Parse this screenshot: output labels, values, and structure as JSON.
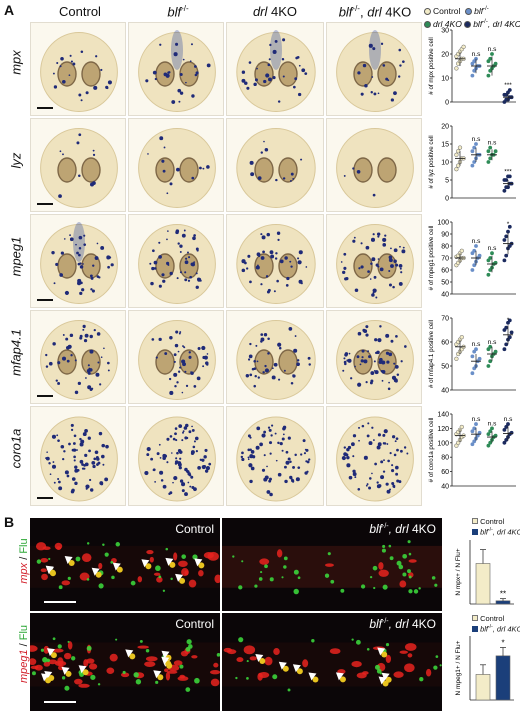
{
  "panel_a": {
    "letter": "A",
    "columns": [
      {
        "text": "Control",
        "italic": false
      },
      {
        "text": "blf",
        "sup": "-/-",
        "italic": true
      },
      {
        "text": "drl",
        "suffix": " 4KO",
        "italic": true
      },
      {
        "text": "blf",
        "sup": "-/-",
        "mid": ", ",
        "text2": "drl",
        "suffix": " 4KO",
        "italic": true
      }
    ],
    "rows": [
      "mpx",
      "lyz",
      "mpeg1",
      "mfap4.1",
      "coro1a"
    ],
    "legend": [
      {
        "label": "Control",
        "color": "#f3ecc8"
      },
      {
        "label": "blf",
        "sup": "-/-",
        "color": "#6a8fc8"
      },
      {
        "label": "drl 4KO",
        "color": "#2e8b57"
      },
      {
        "label": "blf",
        "sup": "-/-",
        "label2": ", drl 4KO",
        "color": "#1b2a5e"
      }
    ]
  },
  "chart_data": [
    {
      "type": "scatter",
      "gene": "mpx",
      "ylabel": "# of mpx positive cell",
      "ylim": [
        0,
        30
      ],
      "yticks": [
        0,
        10,
        20,
        30
      ],
      "groups": [
        "Control",
        "blf-/-",
        "drl 4KO",
        "blf-/-, drl 4KO"
      ],
      "means": [
        18,
        15,
        15,
        2
      ],
      "sd": [
        3,
        3,
        4,
        1.5
      ],
      "points": [
        [
          14,
          16,
          17,
          18,
          18,
          19,
          20,
          21,
          22,
          23
        ],
        [
          11,
          13,
          14,
          15,
          15,
          16,
          17,
          18
        ],
        [
          11,
          13,
          14,
          15,
          16,
          17,
          18,
          20
        ],
        [
          0,
          1,
          1,
          2,
          2,
          3,
          3,
          4,
          5
        ]
      ],
      "annotations": [
        "",
        "n.s",
        "n.s",
        "***"
      ]
    },
    {
      "type": "scatter",
      "gene": "lyz",
      "ylabel": "# of lyz positive cell",
      "ylim": [
        0,
        20
      ],
      "yticks": [
        0,
        5,
        10,
        15,
        20
      ],
      "groups": [
        "Control",
        "blf-/-",
        "drl 4KO",
        "blf-/-, drl 4KO"
      ],
      "means": [
        11,
        12,
        12,
        4
      ],
      "sd": [
        2,
        2,
        1.5,
        1
      ],
      "points": [
        [
          8,
          9,
          10,
          11,
          11,
          12,
          13,
          14
        ],
        [
          9,
          10,
          11,
          12,
          12,
          13,
          14,
          15
        ],
        [
          10,
          11,
          12,
          12,
          13,
          13,
          14
        ],
        [
          2,
          3,
          3,
          4,
          4,
          5,
          5,
          6,
          6
        ]
      ],
      "annotations": [
        "",
        "n.s",
        "n.s",
        "***"
      ]
    },
    {
      "type": "scatter",
      "gene": "mpeg1",
      "ylabel": "# of mpeg1 positive cell",
      "ylim": [
        40,
        100
      ],
      "yticks": [
        40,
        50,
        60,
        70,
        80,
        90,
        100
      ],
      "groups": [
        "Control",
        "blf-/-",
        "drl 4KO",
        "blf-/-, drl 4KO"
      ],
      "means": [
        70,
        70,
        65,
        82
      ],
      "sd": [
        4,
        6,
        7,
        9
      ],
      "points": [
        [
          64,
          66,
          68,
          70,
          70,
          71,
          72,
          74,
          76
        ],
        [
          60,
          64,
          67,
          70,
          72,
          74,
          76,
          80
        ],
        [
          56,
          60,
          62,
          65,
          66,
          68,
          70,
          74
        ],
        [
          68,
          72,
          78,
          80,
          82,
          85,
          88,
          92,
          96
        ]
      ],
      "annotations": [
        "",
        "n.s",
        "n.s",
        "*"
      ]
    },
    {
      "type": "scatter",
      "gene": "mfap4.1",
      "ylabel": "# of mfap4.1 positive cell",
      "ylim": [
        40,
        70
      ],
      "yticks": [
        40,
        50,
        60,
        70
      ],
      "groups": [
        "Control",
        "blf-/-",
        "drl 4KO",
        "blf-/-, drl 4KO"
      ],
      "means": [
        58,
        52,
        55,
        63
      ],
      "sd": [
        3,
        3,
        3,
        4
      ],
      "points": [
        [
          53,
          55,
          56,
          57,
          58,
          59,
          60,
          61,
          62
        ],
        [
          47,
          49,
          50,
          52,
          53,
          54,
          56,
          57
        ],
        [
          50,
          52,
          54,
          55,
          56,
          57,
          58
        ],
        [
          57,
          59,
          61,
          62,
          64,
          65,
          66,
          68,
          69
        ]
      ],
      "annotations": [
        "",
        "n.s",
        "n.s",
        "*"
      ]
    },
    {
      "type": "scatter",
      "gene": "coro1a",
      "ylabel": "# of coro1a positive cell",
      "ylim": [
        40,
        140
      ],
      "yticks": [
        40,
        60,
        80,
        100,
        120,
        140
      ],
      "groups": [
        "Control",
        "blf-/-",
        "drl 4KO",
        "blf-/-, drl 4KO"
      ],
      "means": [
        110,
        112,
        108,
        113
      ],
      "sd": [
        9,
        9,
        8,
        10
      ],
      "points": [
        [
          96,
          100,
          104,
          108,
          110,
          112,
          115,
          118,
          122
        ],
        [
          98,
          102,
          106,
          110,
          114,
          116,
          120,
          126
        ],
        [
          96,
          100,
          104,
          108,
          110,
          112,
          116,
          120
        ],
        [
          100,
          104,
          108,
          112,
          114,
          118,
          122,
          126
        ]
      ],
      "annotations": [
        "",
        "n.s",
        "n.s",
        "n.s"
      ]
    },
    {
      "type": "bar",
      "title": "",
      "ylabel": "N mpx+ / N Flu+",
      "ylim": [
        0,
        60
      ],
      "categories": [
        "Control",
        "blf-/-, drl 4KO"
      ],
      "values": [
        38,
        3
      ],
      "errors": [
        13,
        2
      ],
      "colors": [
        "#f3ecc8",
        "#1b3f7a"
      ],
      "annotations": [
        "",
        "**"
      ]
    },
    {
      "type": "bar",
      "title": "",
      "ylabel": "N mpeg1+ / N Flu+",
      "ylim": [
        0,
        100
      ],
      "categories": [
        "Control",
        "blf-/-, drl 4KO"
      ],
      "values": [
        40,
        69
      ],
      "errors": [
        15,
        13
      ],
      "colors": [
        "#f3ecc8",
        "#1b3f7a"
      ],
      "annotations": [
        "",
        "*"
      ]
    }
  ],
  "panel_b": {
    "letter": "B",
    "row_labels": [
      {
        "marker": "mpx",
        "sep": " / ",
        "flu": "Flu"
      },
      {
        "marker": "mpeg1",
        "sep": " / ",
        "flu": "Flu"
      }
    ],
    "panels": [
      {
        "label": "Control"
      },
      {
        "label_a": "blf",
        "label_sup": "-/-",
        "label_b": ", drl",
        "label_c": " 4KO"
      },
      {
        "label": "Control"
      },
      {
        "label_a": "blf",
        "label_sup": "-/-",
        "label_b": ", drl",
        "label_c": " 4KO"
      }
    ],
    "legend": [
      {
        "label": "Control"
      },
      {
        "label_a": "blf",
        "label_sup": "-/-",
        "label_b": ", drl 4KO"
      }
    ]
  }
}
